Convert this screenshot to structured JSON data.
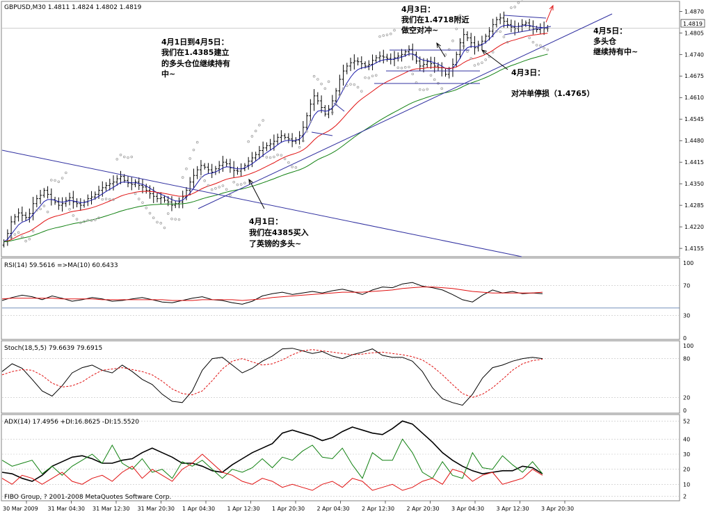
{
  "chart_data": [
    {
      "type": "candlestick",
      "title": "GBPUSD,M30  1.4811 1.4824 1.4802 1.4819",
      "last_price": "1.4819",
      "price_ticks": [
        "1.4870",
        "1.4805",
        "1.4740",
        "1.4675",
        "1.4610",
        "1.4545",
        "1.4480",
        "1.4415",
        "1.4350",
        "1.4285",
        "1.4220",
        "1.4155"
      ],
      "time_labels": [
        "30 Mar 2009",
        "31 Mar 04:30",
        "31 Mar 12:30",
        "31 Mar 20:30",
        "1 Apr 04:30",
        "1 Apr 12:30",
        "1 Apr 20:30",
        "2 Apr 04:30",
        "2 Apr 12:30",
        "2 Apr 20:30",
        "3 Apr 04:30",
        "3 Apr 12:30",
        "3 Apr 20:30"
      ],
      "indicators": [
        "Moving Average (blue)",
        "Moving Average (red)",
        "Moving Average (green)",
        "Parabolic SAR (dots)"
      ],
      "ylim": [
        1.413,
        1.49
      ],
      "closes": [
        1.4175,
        1.42,
        1.4235,
        1.425,
        1.4262,
        1.4255,
        1.4248,
        1.426,
        1.429,
        1.4305,
        1.4315,
        1.433,
        1.4318,
        1.4302,
        1.4295,
        1.4285,
        1.429,
        1.43,
        1.4308,
        1.4295,
        1.429,
        1.4285,
        1.4295,
        1.4305,
        1.431,
        1.4318,
        1.433,
        1.4338,
        1.4345,
        1.435,
        1.4355,
        1.4365,
        1.4372,
        1.436,
        1.4352,
        1.4348,
        1.4355,
        1.4345,
        1.434,
        1.433,
        1.432,
        1.4312,
        1.4305,
        1.4308,
        1.43,
        1.4295,
        1.4285,
        1.429,
        1.4295,
        1.431,
        1.433,
        1.4355,
        1.4375,
        1.4392,
        1.4405,
        1.44,
        1.4392,
        1.4385,
        1.4395,
        1.4405,
        1.4415,
        1.441,
        1.4398,
        1.439,
        1.4388,
        1.4395,
        1.4405,
        1.4418,
        1.4428,
        1.4438,
        1.445,
        1.4458,
        1.4465,
        1.447,
        1.4478,
        1.449,
        1.4495,
        1.449,
        1.4485,
        1.4478,
        1.4482,
        1.4495,
        1.452,
        1.4555,
        1.459,
        1.4615,
        1.46,
        1.458,
        1.456,
        1.4575,
        1.46,
        1.463,
        1.4665,
        1.469,
        1.4705,
        1.4715,
        1.472,
        1.4718,
        1.4712,
        1.4705,
        1.471,
        1.4722,
        1.473,
        1.4735,
        1.4732,
        1.4728,
        1.4725,
        1.473,
        1.4735,
        1.474,
        1.4748,
        1.4755,
        1.474,
        1.472,
        1.4705,
        1.471,
        1.4718,
        1.4712,
        1.4705,
        1.47,
        1.469,
        1.468,
        1.469,
        1.471,
        1.474,
        1.4775,
        1.48,
        1.479,
        1.4775,
        1.476,
        1.477,
        1.478,
        1.4795,
        1.481,
        1.483,
        1.4845,
        1.485,
        1.484,
        1.483,
        1.4822,
        1.4818,
        1.4825,
        1.483,
        1.4835,
        1.4825,
        1.4818,
        1.4815,
        1.482,
        1.4818,
        1.4819
      ]
    },
    {
      "type": "line",
      "title": "RSI(14) 59.5616  =>MA(10) 60.6433",
      "ticks": [
        "100",
        "70",
        "30",
        "0"
      ],
      "ylim": [
        0,
        100
      ],
      "series": [
        {
          "name": "RSI(14)",
          "values": [
            50,
            54,
            57,
            55,
            51,
            56,
            53,
            49,
            51,
            54,
            52,
            49,
            50,
            52,
            54,
            51,
            48,
            47,
            50,
            53,
            55,
            51,
            50,
            47,
            45,
            49,
            56,
            59,
            61,
            58,
            60,
            62,
            60,
            63,
            65,
            62,
            58,
            64,
            68,
            67,
            72,
            74,
            69,
            67,
            64,
            58,
            51,
            48,
            57,
            64,
            60,
            62,
            59,
            60,
            59
          ]
        },
        {
          "name": "MA(10)",
          "values": [
            52,
            53,
            53,
            53,
            53,
            53,
            52,
            52,
            52,
            52,
            51,
            51,
            51,
            51,
            51,
            51,
            51,
            50,
            50,
            50,
            51,
            51,
            51,
            51,
            50,
            51,
            52,
            54,
            55,
            56,
            57,
            58,
            59,
            60,
            61,
            61,
            61,
            62,
            63,
            64,
            66,
            67,
            68,
            68,
            67,
            66,
            64,
            62,
            61,
            60,
            60,
            60,
            60,
            60,
            61
          ]
        }
      ]
    },
    {
      "type": "line",
      "title": "Stoch(18,5,5) 79.6639 79.6915",
      "ticks": [
        "100",
        "80",
        "20",
        "0"
      ],
      "ylim": [
        0,
        100
      ],
      "series": [
        {
          "name": "%K",
          "values": [
            60,
            72,
            65,
            48,
            30,
            22,
            38,
            58,
            66,
            70,
            62,
            58,
            70,
            60,
            48,
            40,
            25,
            14,
            12,
            30,
            62,
            80,
            82,
            70,
            58,
            65,
            76,
            84,
            95,
            96,
            92,
            88,
            91,
            84,
            80,
            86,
            90,
            95,
            85,
            82,
            82,
            76,
            60,
            35,
            18,
            12,
            8,
            25,
            50,
            66,
            70,
            76,
            80,
            82,
            80
          ]
        },
        {
          "name": "%D",
          "values": [
            55,
            60,
            63,
            62,
            54,
            42,
            36,
            38,
            44,
            54,
            62,
            64,
            66,
            63,
            60,
            55,
            45,
            33,
            26,
            24,
            30,
            46,
            64,
            76,
            80,
            75,
            70,
            72,
            78,
            86,
            92,
            94,
            92,
            90,
            88,
            86,
            87,
            89,
            90,
            88,
            86,
            83,
            78,
            68,
            55,
            40,
            26,
            20,
            25,
            35,
            48,
            62,
            72,
            77,
            79
          ]
        }
      ]
    },
    {
      "type": "line",
      "title": "ADX(14) 17.4956 +DI:16.8625 -DI:15.5520",
      "ticks": [
        "52",
        "40",
        "30",
        "20",
        "10",
        "2"
      ],
      "ylim": [
        0,
        54
      ],
      "series": [
        {
          "name": "ADX(14)",
          "values": [
            18,
            17,
            14,
            12,
            16,
            22,
            25,
            28,
            29,
            27,
            24,
            24,
            26,
            27,
            31,
            34,
            31,
            28,
            24,
            24,
            22,
            19,
            18,
            23,
            27,
            31,
            34,
            37,
            44,
            46,
            44,
            42,
            39,
            41,
            45,
            48,
            46,
            44,
            43,
            47,
            52,
            50,
            44,
            38,
            31,
            26,
            22,
            19,
            17,
            18,
            19,
            19,
            22,
            21,
            17
          ]
        },
        {
          "name": "+DI",
          "values": [
            26,
            22,
            24,
            26,
            17,
            22,
            16,
            22,
            26,
            30,
            24,
            36,
            24,
            20,
            27,
            18,
            20,
            14,
            25,
            22,
            26,
            20,
            14,
            20,
            18,
            21,
            27,
            21,
            28,
            26,
            32,
            36,
            28,
            27,
            34,
            23,
            14,
            31,
            26,
            26,
            40,
            31,
            18,
            14,
            25,
            16,
            14,
            31,
            21,
            20,
            29,
            23,
            18,
            25,
            17
          ]
        },
        {
          "name": "-DI",
          "values": [
            14,
            10,
            16,
            14,
            10,
            14,
            18,
            12,
            10,
            14,
            16,
            12,
            18,
            22,
            14,
            20,
            16,
            12,
            20,
            24,
            30,
            24,
            18,
            16,
            12,
            10,
            14,
            12,
            8,
            10,
            8,
            6,
            10,
            12,
            8,
            14,
            12,
            6,
            8,
            10,
            6,
            8,
            12,
            14,
            10,
            20,
            18,
            12,
            16,
            18,
            10,
            12,
            14,
            20,
            16
          ]
        }
      ]
    }
  ],
  "annotations": {
    "a1": [
      "4月1日到4月5日：",
      "我们在1.4385建立",
      "的多头仓位继续持有",
      "中~"
    ],
    "a2": [
      "4月3日：",
      "我们在1.4718附近",
      "做空对冲~"
    ],
    "a3": [
      "4月5日：",
      "多头仓",
      "继续持有中~"
    ],
    "a4": [
      "4月3日："
    ],
    "a5": [
      "对冲单停损（1.4765）"
    ],
    "a6": [
      "4月1日：",
      "我们在4385买入",
      "了英镑的多头~"
    ]
  },
  "footer": "FIBO Group, ? 2001-2008 MetaQuotes Software Corp.",
  "colors": {
    "candles": "#000000",
    "ma_fast": "#1a1aa8",
    "ma_mid": "#e01010",
    "ma_slow": "#108010",
    "sar": "#a0a0a0",
    "trend": "#3030a0",
    "arrow": "#e02020",
    "grid": "#c0c0c0"
  }
}
